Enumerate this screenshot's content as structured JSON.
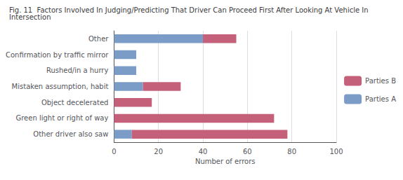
{
  "chart_data": {
    "type": "bar",
    "orientation": "horizontal",
    "stacked": true,
    "title": "Fig. 11  Factors Involved In Judging/Predicting That Driver Can Proceed First After Looking At Vehicle In Intersection",
    "categories": [
      "Other driver also saw",
      "Green light or right of way",
      "Object decelerated",
      "Mistaken assumption, habit",
      "Rushed/in a hurry",
      "Confirmation by traffic mirror",
      "Other"
    ],
    "series": [
      {
        "name": "Parties A",
        "color": "#7b9cc7",
        "values": [
          8,
          0,
          0,
          13,
          10,
          10,
          40
        ]
      },
      {
        "name": "Parties B",
        "color": "#c4607a",
        "values": [
          70,
          72,
          17,
          17,
          0,
          0,
          15
        ]
      }
    ],
    "xlabel": "Number of errors",
    "xlim": [
      0,
      100
    ],
    "xticks": [
      0,
      20,
      40,
      60,
      80,
      100
    ],
    "grid": true,
    "legend": "right"
  }
}
